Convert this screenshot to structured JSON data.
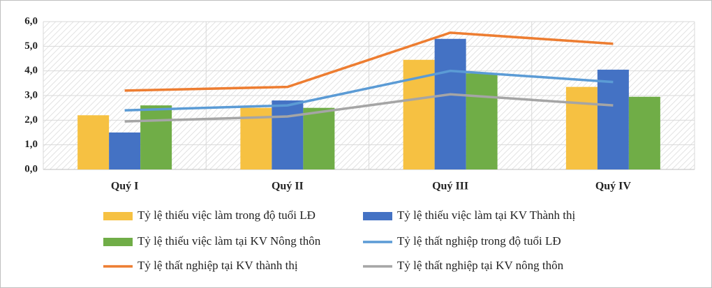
{
  "chart_data": {
    "type": "bar",
    "categories": [
      "Quý I",
      "Quý II",
      "Quý III",
      "Quý IV"
    ],
    "ylim": [
      0,
      6
    ],
    "yticks": [
      {
        "value": 0,
        "label": "0,0"
      },
      {
        "value": 1,
        "label": "1,0"
      },
      {
        "value": 2,
        "label": "2,0"
      },
      {
        "value": 3,
        "label": "3,0"
      },
      {
        "value": 4,
        "label": "4,0"
      },
      {
        "value": 5,
        "label": "5,0"
      },
      {
        "value": 6,
        "label": "6,0"
      }
    ],
    "grid": true,
    "series": [
      {
        "name": "Tỷ lệ thiếu việc làm trong độ tuổi LĐ",
        "type": "bar",
        "color": "#f6c142",
        "values": [
          2.2,
          2.5,
          4.45,
          3.35
        ]
      },
      {
        "name": "Tỷ lệ thiếu việc làm tại KV Thành thị",
        "type": "bar",
        "color": "#4472c4",
        "values": [
          1.5,
          2.8,
          5.3,
          4.05
        ]
      },
      {
        "name": "Tỷ lệ thiếu việc làm tại KV Nông thôn",
        "type": "bar",
        "color": "#70ad47",
        "values": [
          2.6,
          2.5,
          3.9,
          2.95
        ]
      },
      {
        "name": "Tỷ lệ thất nghiệp trong độ tuổi LĐ",
        "type": "line",
        "color": "#5b9bd5",
        "values": [
          2.4,
          2.6,
          4.0,
          3.55
        ]
      },
      {
        "name": "Tỷ lệ thất nghiệp tại KV thành thị",
        "type": "line",
        "color": "#ed7d31",
        "values": [
          3.2,
          3.35,
          5.55,
          5.1
        ]
      },
      {
        "name": "Tỷ lệ thất nghiệp tại KV nông thôn",
        "type": "line",
        "color": "#a5a5a5",
        "values": [
          1.95,
          2.15,
          3.05,
          2.6
        ]
      }
    ]
  }
}
